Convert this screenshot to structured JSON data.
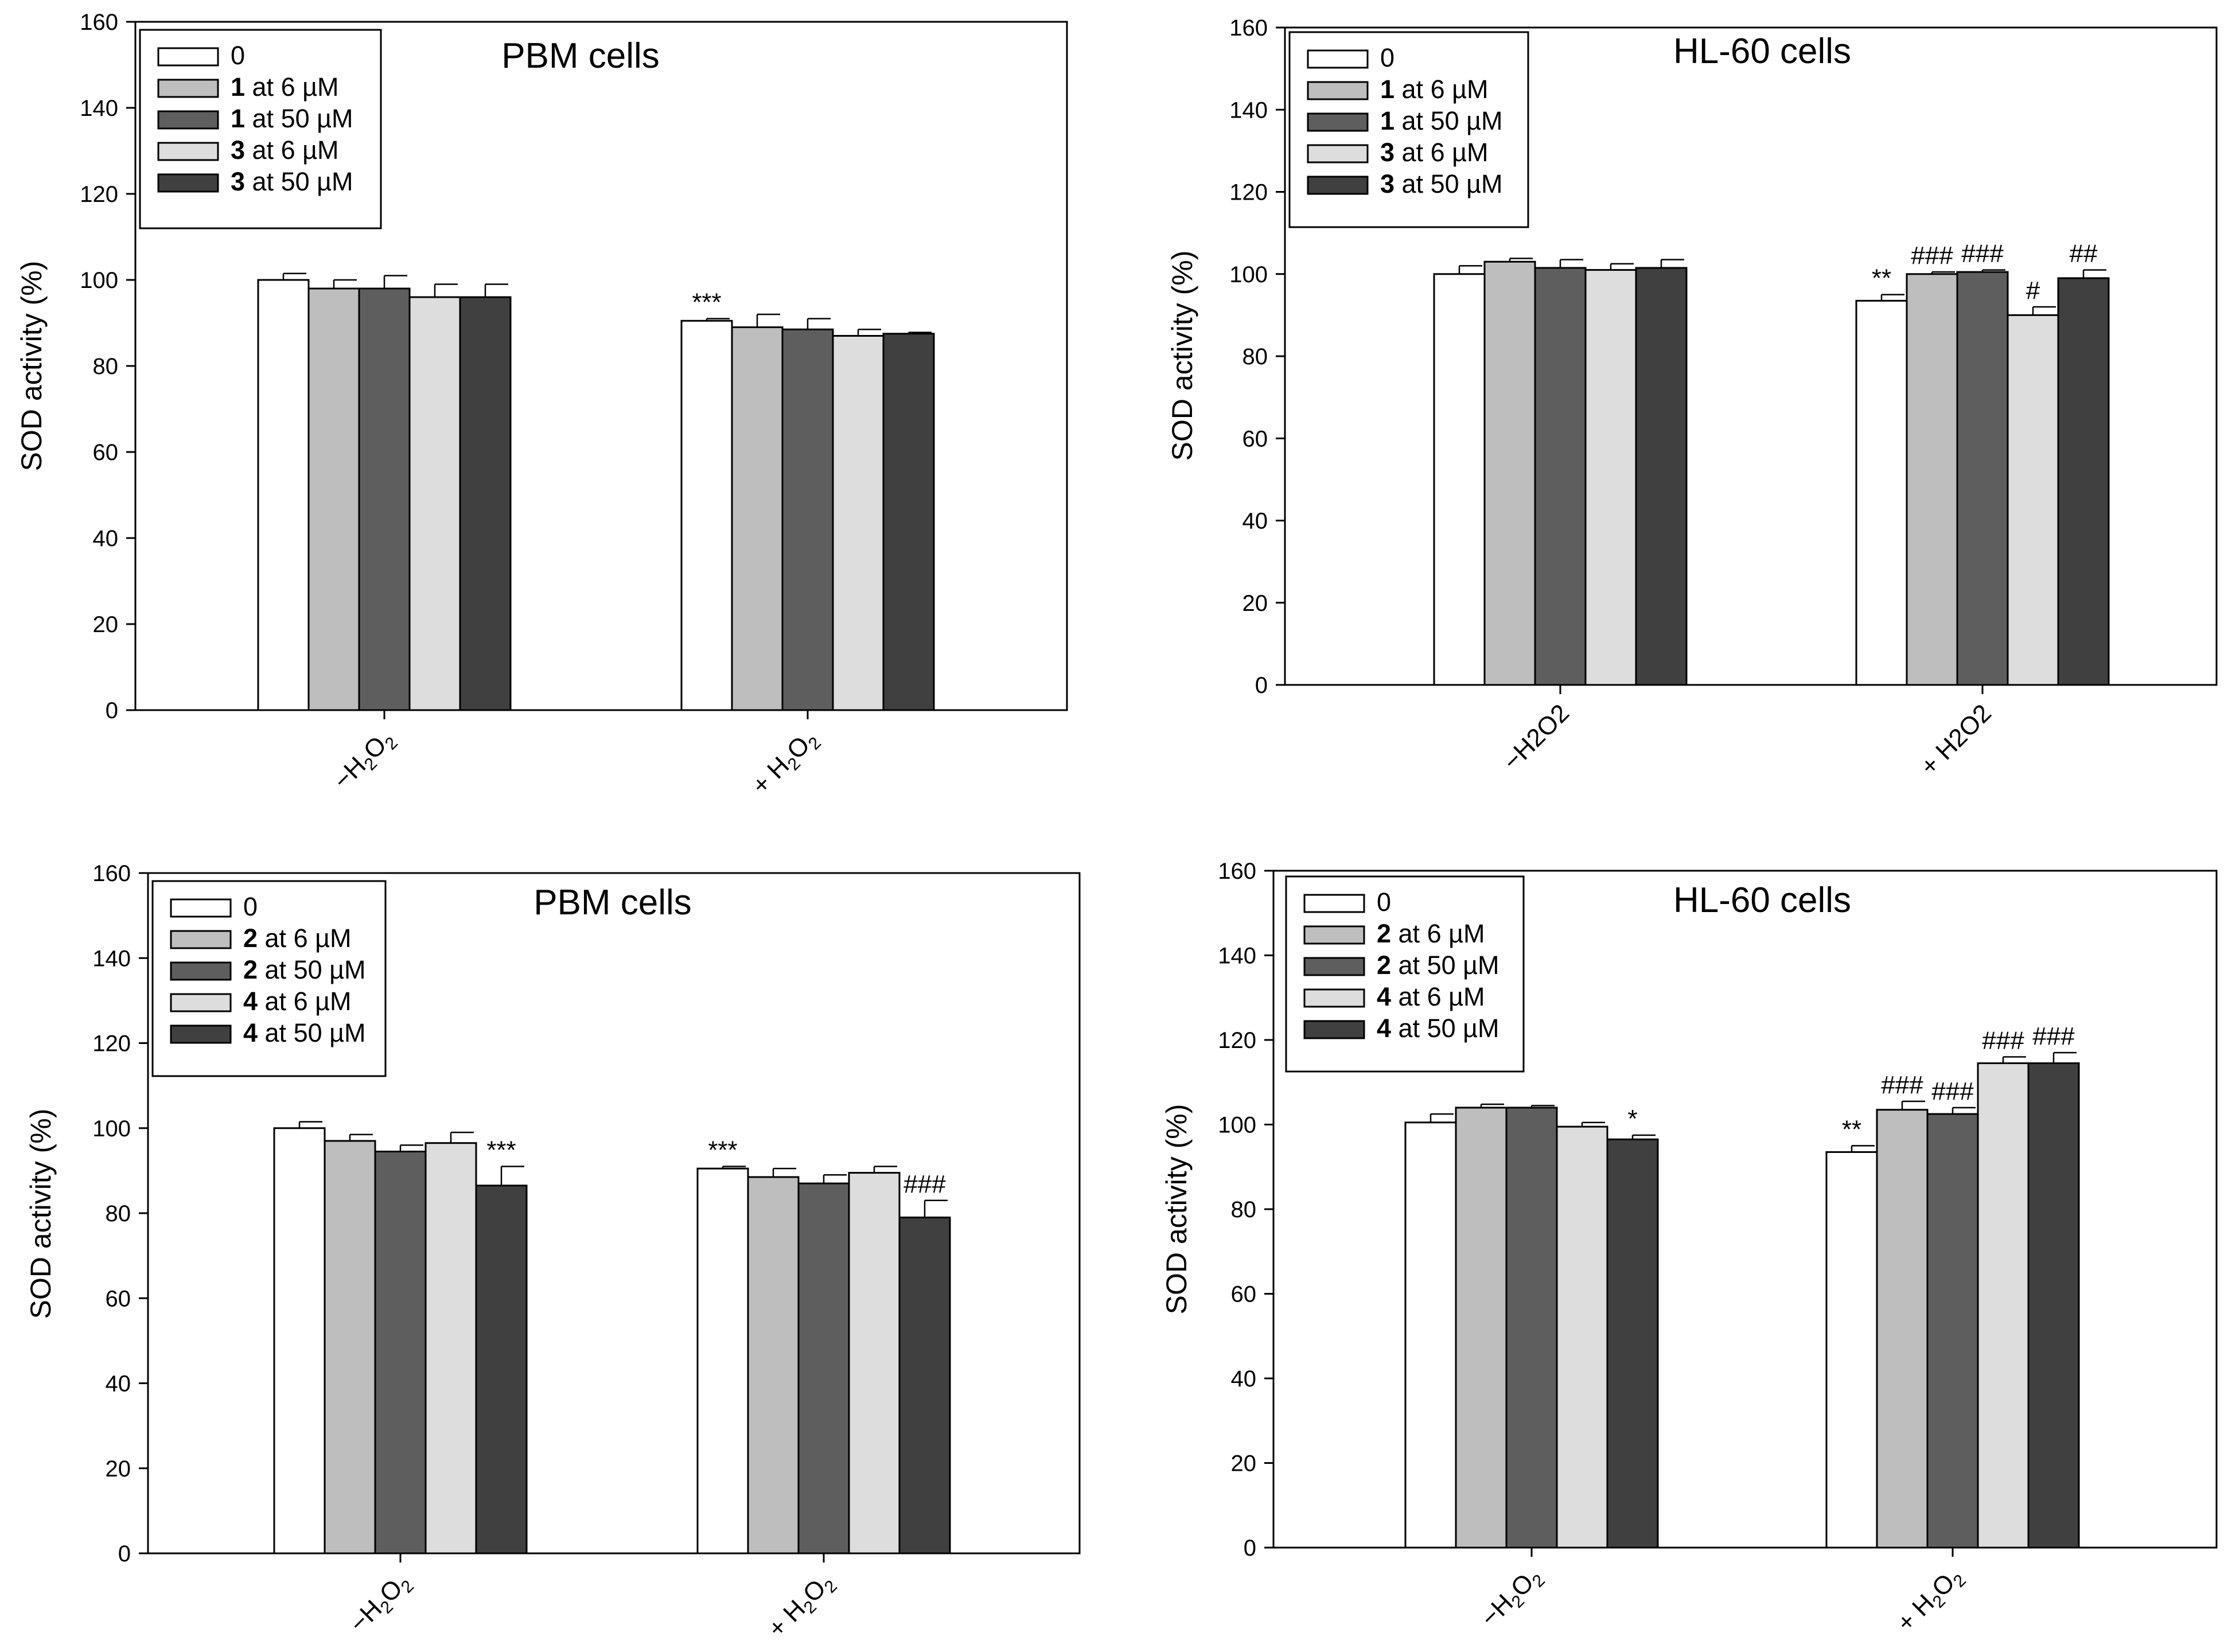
{
  "chart_data": [
    {
      "type": "bar",
      "title": "PBM cells",
      "ylabel": "SOD activity (%)",
      "xlabel": "",
      "ylim": [
        0,
        160
      ],
      "yticks": [
        0,
        20,
        40,
        60,
        80,
        100,
        120,
        140,
        160
      ],
      "categories": [
        {
          "pre": "−H",
          "sub1": "2",
          "mid": "O",
          "sub2": "2"
        },
        {
          "pre": "+ H",
          "sub1": "2",
          "mid": "O",
          "sub2": "2"
        }
      ],
      "legend_position": "top-left",
      "series": [
        {
          "name": "0",
          "label_bold": "",
          "label_rest": "0",
          "color": "#ffffff",
          "values": [
            100,
            90.5
          ],
          "errors": [
            1.5,
            0.5
          ],
          "annotations": [
            "",
            "***"
          ]
        },
        {
          "name": "1 at 6 µM",
          "label_bold": "1",
          "label_rest": " at 6 µM",
          "color": "#bebebe",
          "values": [
            98,
            89
          ],
          "errors": [
            2,
            3
          ],
          "annotations": [
            "",
            ""
          ]
        },
        {
          "name": "1 at 50 µM",
          "label_bold": "1",
          "label_rest": " at 50 µM",
          "color": "#5e5e5e",
          "values": [
            98,
            88.5
          ],
          "errors": [
            3,
            2.5
          ],
          "annotations": [
            "",
            ""
          ]
        },
        {
          "name": "3 at 6 µM",
          "label_bold": "3",
          "label_rest": " at 6 µM",
          "color": "#dddddd",
          "values": [
            96,
            87
          ],
          "errors": [
            3,
            1.5
          ],
          "annotations": [
            "",
            ""
          ]
        },
        {
          "name": "3 at 50 µM",
          "label_bold": "3",
          "label_rest": " at 50 µM",
          "color": "#404040",
          "values": [
            96,
            87.5
          ],
          "errors": [
            3,
            0.3
          ],
          "annotations": [
            "",
            ""
          ]
        }
      ]
    },
    {
      "type": "bar",
      "title": "HL-60 cells",
      "ylabel": "SOD activity (%)",
      "xlabel": "",
      "ylim": [
        0,
        160
      ],
      "yticks": [
        0,
        20,
        40,
        60,
        80,
        100,
        120,
        140,
        160
      ],
      "categories": [
        {
          "pre": "−H2O2",
          "sub1": "",
          "mid": "",
          "sub2": ""
        },
        {
          "pre": "+ H2O2",
          "sub1": "",
          "mid": "",
          "sub2": ""
        }
      ],
      "legend_position": "top-left",
      "series": [
        {
          "name": "0",
          "label_bold": "",
          "label_rest": "0",
          "color": "#ffffff",
          "values": [
            100,
            93.5
          ],
          "errors": [
            2,
            1.5
          ],
          "annotations": [
            "",
            "**"
          ]
        },
        {
          "name": "1 at 6 µM",
          "label_bold": "1",
          "label_rest": " at 6 µM",
          "color": "#bebebe",
          "values": [
            103,
            100
          ],
          "errors": [
            0.8,
            0.5
          ],
          "annotations": [
            "",
            "###"
          ]
        },
        {
          "name": "1 at 50 µM",
          "label_bold": "1",
          "label_rest": " at 50 µM",
          "color": "#5e5e5e",
          "values": [
            101.5,
            100.5
          ],
          "errors": [
            2,
            0.5
          ],
          "annotations": [
            "",
            "###"
          ]
        },
        {
          "name": "3 at 6 µM",
          "label_bold": "3",
          "label_rest": " at 6 µM",
          "color": "#dddddd",
          "values": [
            101,
            90
          ],
          "errors": [
            1.5,
            2
          ],
          "annotations": [
            "",
            "#"
          ]
        },
        {
          "name": "3 at 50 µM",
          "label_bold": "3",
          "label_rest": " at 50 µM",
          "color": "#404040",
          "values": [
            101.5,
            99
          ],
          "errors": [
            2,
            2
          ],
          "annotations": [
            "",
            "##"
          ]
        }
      ]
    },
    {
      "type": "bar",
      "title": "PBM cells",
      "ylabel": "SOD activity (%)",
      "xlabel": "",
      "ylim": [
        0,
        160
      ],
      "yticks": [
        0,
        20,
        40,
        60,
        80,
        100,
        120,
        140,
        160
      ],
      "categories": [
        {
          "pre": "−H",
          "sub1": "2",
          "mid": "O",
          "sub2": "2"
        },
        {
          "pre": "+ H",
          "sub1": "2",
          "mid": "O",
          "sub2": "2"
        }
      ],
      "legend_position": "top-left",
      "series": [
        {
          "name": "0",
          "label_bold": "",
          "label_rest": "0",
          "color": "#ffffff",
          "values": [
            100,
            90.5
          ],
          "errors": [
            1.5,
            0.5
          ],
          "annotations": [
            "",
            "***"
          ]
        },
        {
          "name": "2 at 6 µM",
          "label_bold": "2",
          "label_rest": " at 6 µM",
          "color": "#bebebe",
          "values": [
            97,
            88.5
          ],
          "errors": [
            1.5,
            2
          ],
          "annotations": [
            "",
            ""
          ]
        },
        {
          "name": "2 at 50 µM",
          "label_bold": "2",
          "label_rest": " at 50 µM",
          "color": "#5e5e5e",
          "values": [
            94.5,
            87
          ],
          "errors": [
            1.5,
            2
          ],
          "annotations": [
            "",
            ""
          ]
        },
        {
          "name": "4 at 6 µM",
          "label_bold": "4",
          "label_rest": " at 6 µM",
          "color": "#dddddd",
          "values": [
            96.5,
            89.5
          ],
          "errors": [
            2.5,
            1.5
          ],
          "annotations": [
            "",
            ""
          ]
        },
        {
          "name": "4 at 50 µM",
          "label_bold": "4",
          "label_rest": " at 50 µM",
          "color": "#404040",
          "values": [
            86.5,
            79
          ],
          "errors": [
            4.5,
            4
          ],
          "annotations": [
            "***",
            "###"
          ]
        }
      ]
    },
    {
      "type": "bar",
      "title": "HL-60 cells",
      "ylabel": "SOD activity (%)",
      "xlabel": "",
      "ylim": [
        0,
        160
      ],
      "yticks": [
        0,
        20,
        40,
        60,
        80,
        100,
        120,
        140,
        160
      ],
      "categories": [
        {
          "pre": "−H",
          "sub1": "2",
          "mid": "O",
          "sub2": "2"
        },
        {
          "pre": "+ H",
          "sub1": "2",
          "mid": "O",
          "sub2": "2"
        }
      ],
      "legend_position": "top-left",
      "series": [
        {
          "name": "0",
          "label_bold": "",
          "label_rest": "0",
          "color": "#ffffff",
          "values": [
            100.5,
            93.5
          ],
          "errors": [
            2,
            1.5
          ],
          "annotations": [
            "",
            "**"
          ]
        },
        {
          "name": "2 at 6 µM",
          "label_bold": "2",
          "label_rest": " at 6 µM",
          "color": "#bebebe",
          "values": [
            104,
            103.5
          ],
          "errors": [
            0.8,
            2
          ],
          "annotations": [
            "",
            "###"
          ]
        },
        {
          "name": "2 at 50 µM",
          "label_bold": "2",
          "label_rest": " at 50 µM",
          "color": "#5e5e5e",
          "values": [
            104,
            102.5
          ],
          "errors": [
            0.5,
            1.5
          ],
          "annotations": [
            "",
            "###"
          ]
        },
        {
          "name": "4 at 6 µM",
          "label_bold": "4",
          "label_rest": " at 6 µM",
          "color": "#dddddd",
          "values": [
            99.5,
            114.5
          ],
          "errors": [
            1,
            1.5
          ],
          "annotations": [
            "",
            "###"
          ]
        },
        {
          "name": "4 at 50 µM",
          "label_bold": "4",
          "label_rest": " at 50 µM",
          "color": "#404040",
          "values": [
            96.5,
            114.5
          ],
          "errors": [
            1,
            2.5
          ],
          "annotations": [
            "*",
            "###"
          ]
        }
      ]
    }
  ]
}
